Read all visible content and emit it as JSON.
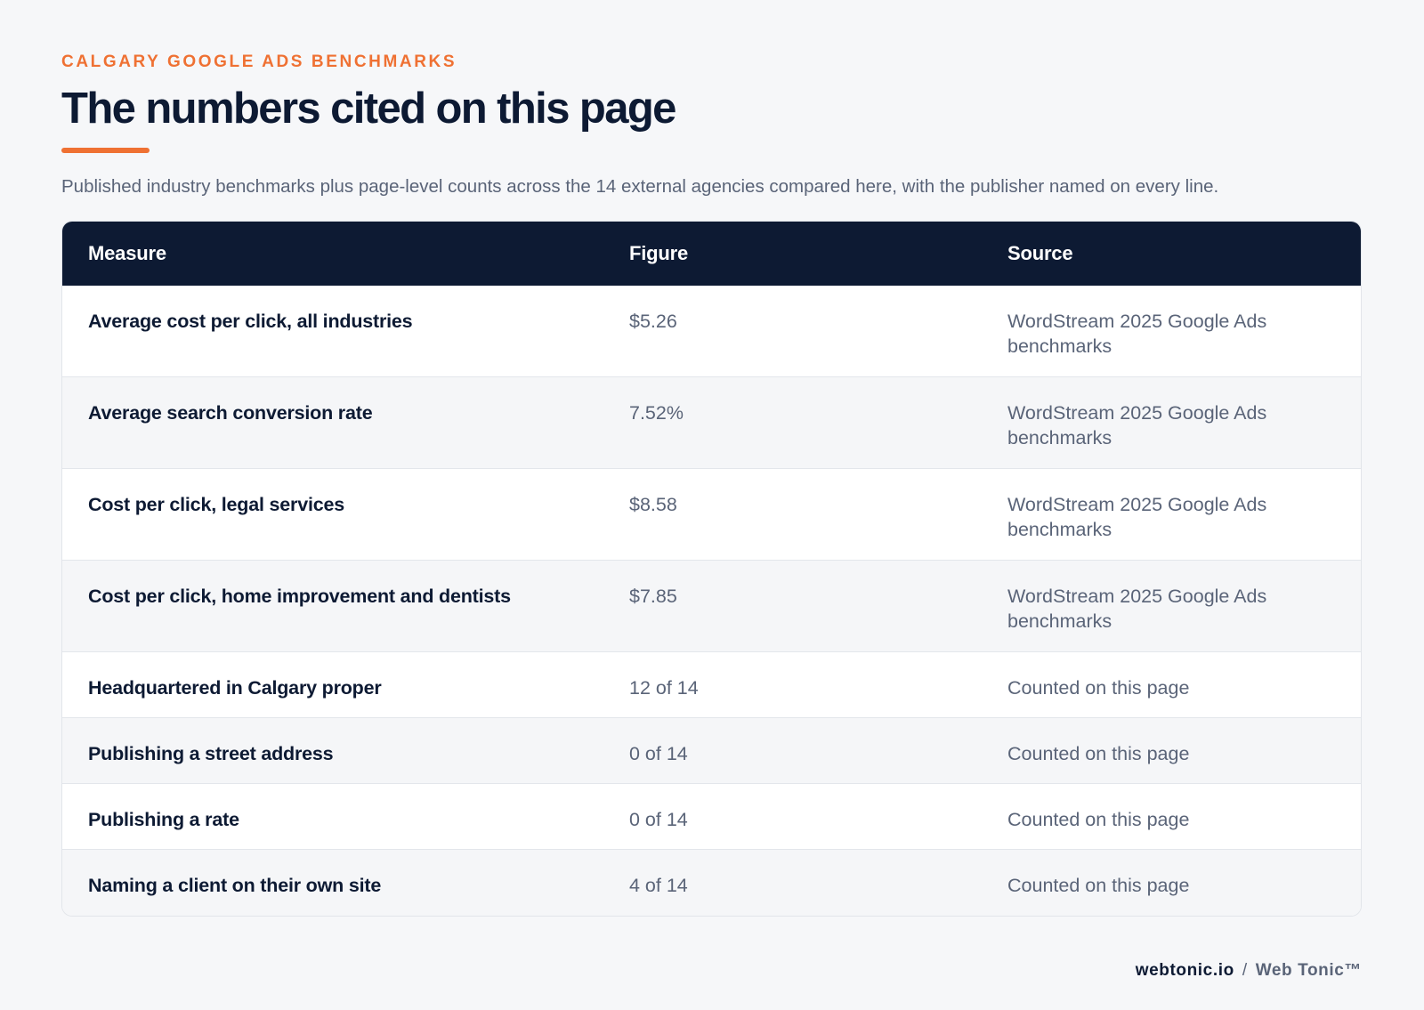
{
  "header": {
    "eyebrow": "CALGARY GOOGLE ADS BENCHMARKS",
    "title": "The numbers cited on this page",
    "subtitle": "Published industry benchmarks plus page-level counts across the 14 external agencies compared here, with the publisher named on every line."
  },
  "table": {
    "columns": [
      "Measure",
      "Figure",
      "Source"
    ],
    "rows": [
      {
        "measure": "Average cost per click, all industries",
        "figure": "$5.26",
        "source": "WordStream 2025 Google Ads benchmarks"
      },
      {
        "measure": "Average search conversion rate",
        "figure": "7.52%",
        "source": "WordStream 2025 Google Ads benchmarks"
      },
      {
        "measure": "Cost per click, legal services",
        "figure": "$8.58",
        "source": "WordStream 2025 Google Ads benchmarks"
      },
      {
        "measure": "Cost per click, home improvement and dentists",
        "figure": "$7.85",
        "source": "WordStream 2025 Google Ads benchmarks"
      },
      {
        "measure": "Headquartered in Calgary proper",
        "figure": "12 of 14",
        "source": "Counted on this page"
      },
      {
        "measure": "Publishing a street address",
        "figure": "0 of 14",
        "source": "Counted on this page"
      },
      {
        "measure": "Publishing a rate",
        "figure": "0 of 14",
        "source": "Counted on this page"
      },
      {
        "measure": "Naming a client on their own site",
        "figure": "4 of 14",
        "source": "Counted on this page"
      }
    ]
  },
  "footer": {
    "domain": "webtonic.io",
    "separator": "/",
    "brand": "Web Tonic™"
  },
  "colors": {
    "accent": "#ef7133",
    "navy": "#0d1a33",
    "muted": "#5a6478",
    "background": "#f6f7f9"
  }
}
